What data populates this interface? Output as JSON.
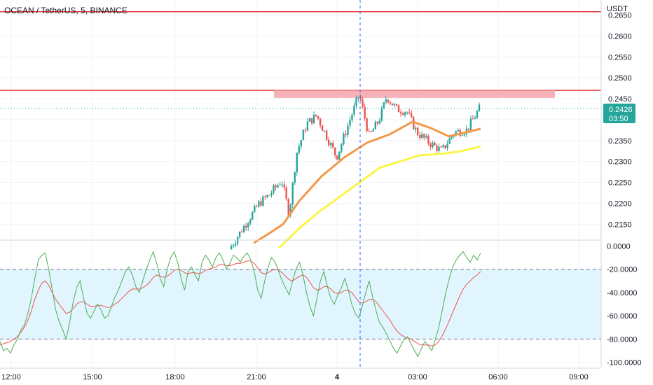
{
  "header": {
    "title": "OCEAN / TetherUS, 5, BINANCE"
  },
  "axis": {
    "unit": "USDT"
  },
  "colors": {
    "up": "#26a69a",
    "down": "#ef5350",
    "hline": "#e53935",
    "zone": "#f5a3ad",
    "ma_fast": "#f2994a",
    "ma_slow": "#fbf54a",
    "osc": "#4caf50",
    "osc_signal": "#ef5350",
    "band": "#e1f5fe",
    "crosshair": "#2962ff",
    "price_line": "#26a69a"
  },
  "price_tag": {
    "price": "0.2426",
    "countdown": "03:50"
  },
  "chart_data": [
    {
      "type": "candlestick",
      "price_ticks": [
        "0.2650",
        "0.2600",
        "0.2550",
        "0.2500",
        "0.2450",
        "0.2400",
        "0.2350",
        "0.2300",
        "0.2250",
        "0.2200",
        "0.2150"
      ],
      "time_ticks": [
        "12:00",
        "15:00",
        "18:00",
        "21:00",
        "4",
        "03:00",
        "06:00",
        "09:00"
      ],
      "ylim": [
        0.2112,
        0.2686
      ],
      "horizontal_lines": [
        0.2658,
        0.247
      ],
      "zone": {
        "from": 0.2452,
        "to": 0.247
      },
      "current_price": 0.2426,
      "segment_visible": [
        {
          "t": 0.0,
          "price": 0.209
        },
        {
          "t": 0.12,
          "price": 0.22
        },
        {
          "t": 0.16,
          "price": 0.222
        },
        {
          "t": 0.21,
          "price": 0.2255
        },
        {
          "t": 0.24,
          "price": 0.2175
        },
        {
          "t": 0.27,
          "price": 0.232
        },
        {
          "t": 0.31,
          "price": 0.239
        },
        {
          "t": 0.35,
          "price": 0.241
        },
        {
          "t": 0.39,
          "price": 0.236
        },
        {
          "t": 0.43,
          "price": 0.231
        },
        {
          "t": 0.48,
          "price": 0.2395
        },
        {
          "t": 0.52,
          "price": 0.246
        },
        {
          "t": 0.56,
          "price": 0.236
        },
        {
          "t": 0.6,
          "price": 0.24
        },
        {
          "t": 0.63,
          "price": 0.2455
        },
        {
          "t": 0.67,
          "price": 0.2425
        },
        {
          "t": 0.71,
          "price": 0.242
        },
        {
          "t": 0.75,
          "price": 0.237
        },
        {
          "t": 0.8,
          "price": 0.2345
        },
        {
          "t": 0.85,
          "price": 0.2325
        },
        {
          "t": 0.9,
          "price": 0.237
        },
        {
          "t": 0.95,
          "price": 0.2375
        },
        {
          "t": 1.0,
          "price": 0.2426
        }
      ],
      "ma_fast": [
        {
          "t": 0.0,
          "price": 0.2105
        },
        {
          "t": 0.06,
          "price": 0.2125
        },
        {
          "t": 0.13,
          "price": 0.215
        },
        {
          "t": 0.2,
          "price": 0.2205
        },
        {
          "t": 0.3,
          "price": 0.2265
        },
        {
          "t": 0.4,
          "price": 0.231
        },
        {
          "t": 0.5,
          "price": 0.2345
        },
        {
          "t": 0.6,
          "price": 0.2365
        },
        {
          "t": 0.7,
          "price": 0.2395
        },
        {
          "t": 0.78,
          "price": 0.238
        },
        {
          "t": 0.86,
          "price": 0.236
        },
        {
          "t": 1.0,
          "price": 0.2378
        }
      ],
      "ma_slow": [
        {
          "t": 0.0,
          "price": 0.2093
        },
        {
          "t": 0.1,
          "price": 0.214
        },
        {
          "t": 0.2,
          "price": 0.218
        },
        {
          "t": 0.3,
          "price": 0.2215
        },
        {
          "t": 0.4,
          "price": 0.225
        },
        {
          "t": 0.5,
          "price": 0.2285
        },
        {
          "t": 0.6,
          "price": 0.23
        },
        {
          "t": 0.7,
          "price": 0.2315
        },
        {
          "t": 0.8,
          "price": 0.2318
        },
        {
          "t": 0.9,
          "price": 0.2324
        },
        {
          "t": 1.0,
          "price": 0.2336
        }
      ]
    },
    {
      "type": "line",
      "ticks": [
        "0.0000",
        "-20.0000",
        "-40.0000",
        "-60.0000",
        "-80.0000",
        "-100.0000"
      ],
      "ylim": [
        -105,
        5
      ],
      "band": [
        -80,
        -20
      ],
      "series": [
        {
          "values": [
            -82,
            -90,
            -88,
            -92,
            -85,
            -80,
            -72,
            -68,
            -58,
            -45,
            -28,
            -12,
            -8,
            -6,
            -20,
            -38,
            -55,
            -65,
            -72,
            -80,
            -66,
            -48,
            -36,
            -30,
            -45,
            -58,
            -62,
            -56,
            -50,
            -55,
            -62,
            -60,
            -52,
            -44,
            -38,
            -30,
            -22,
            -18,
            -25,
            -35,
            -40,
            -30,
            -20,
            -12,
            -5,
            -15,
            -28,
            -35,
            -20,
            -10,
            -5,
            -14,
            -28,
            -38,
            -22,
            -18,
            -25,
            -30,
            -14,
            -8,
            -12,
            -18,
            -10,
            -6,
            -12,
            -20,
            -15,
            -8,
            -10,
            -14,
            -9,
            -6,
            -12,
            -22,
            -38,
            -45,
            -30,
            -18,
            -10,
            -14,
            -22,
            -30,
            -36,
            -42,
            -30,
            -20,
            -14,
            -25,
            -40,
            -52,
            -60,
            -45,
            -30,
            -22,
            -35,
            -45,
            -50,
            -42,
            -36,
            -28,
            -38,
            -50,
            -58,
            -62,
            -52,
            -40,
            -30,
            -44,
            -56,
            -66,
            -70,
            -76,
            -82,
            -88,
            -92,
            -86,
            -80,
            -78,
            -84,
            -90,
            -95,
            -88,
            -82,
            -86,
            -90,
            -80,
            -70,
            -55,
            -40,
            -28,
            -18,
            -12,
            -8,
            -5,
            -10,
            -14,
            -8,
            -12,
            -6
          ]
        },
        {
          "values": [
            -85,
            -84,
            -83,
            -82,
            -80,
            -78,
            -74,
            -70,
            -64,
            -56,
            -46,
            -38,
            -32,
            -30,
            -34,
            -40,
            -46,
            -50,
            -54,
            -58,
            -57,
            -54,
            -50,
            -48,
            -48,
            -50,
            -52,
            -52,
            -51,
            -51,
            -52,
            -53,
            -52,
            -50,
            -48,
            -45,
            -42,
            -39,
            -37,
            -37,
            -37,
            -36,
            -34,
            -31,
            -27,
            -25,
            -26,
            -27,
            -26,
            -24,
            -21,
            -20,
            -21,
            -23,
            -24,
            -23,
            -23,
            -24,
            -23,
            -21,
            -20,
            -19,
            -18,
            -16,
            -16,
            -17,
            -17,
            -16,
            -15,
            -15,
            -14,
            -13,
            -13,
            -15,
            -19,
            -23,
            -24,
            -23,
            -21,
            -20,
            -21,
            -23,
            -26,
            -29,
            -30,
            -28,
            -26,
            -25,
            -27,
            -31,
            -36,
            -38,
            -37,
            -35,
            -35,
            -37,
            -40,
            -41,
            -40,
            -38,
            -38,
            -40,
            -44,
            -48,
            -49,
            -48,
            -46,
            -46,
            -48,
            -52,
            -56,
            -60,
            -64,
            -69,
            -73,
            -76,
            -78,
            -79,
            -80,
            -82,
            -84,
            -85,
            -85,
            -85,
            -86,
            -85,
            -82,
            -77,
            -71,
            -64,
            -57,
            -50,
            -43,
            -37,
            -33,
            -30,
            -27,
            -25,
            -22
          ]
        }
      ]
    }
  ]
}
